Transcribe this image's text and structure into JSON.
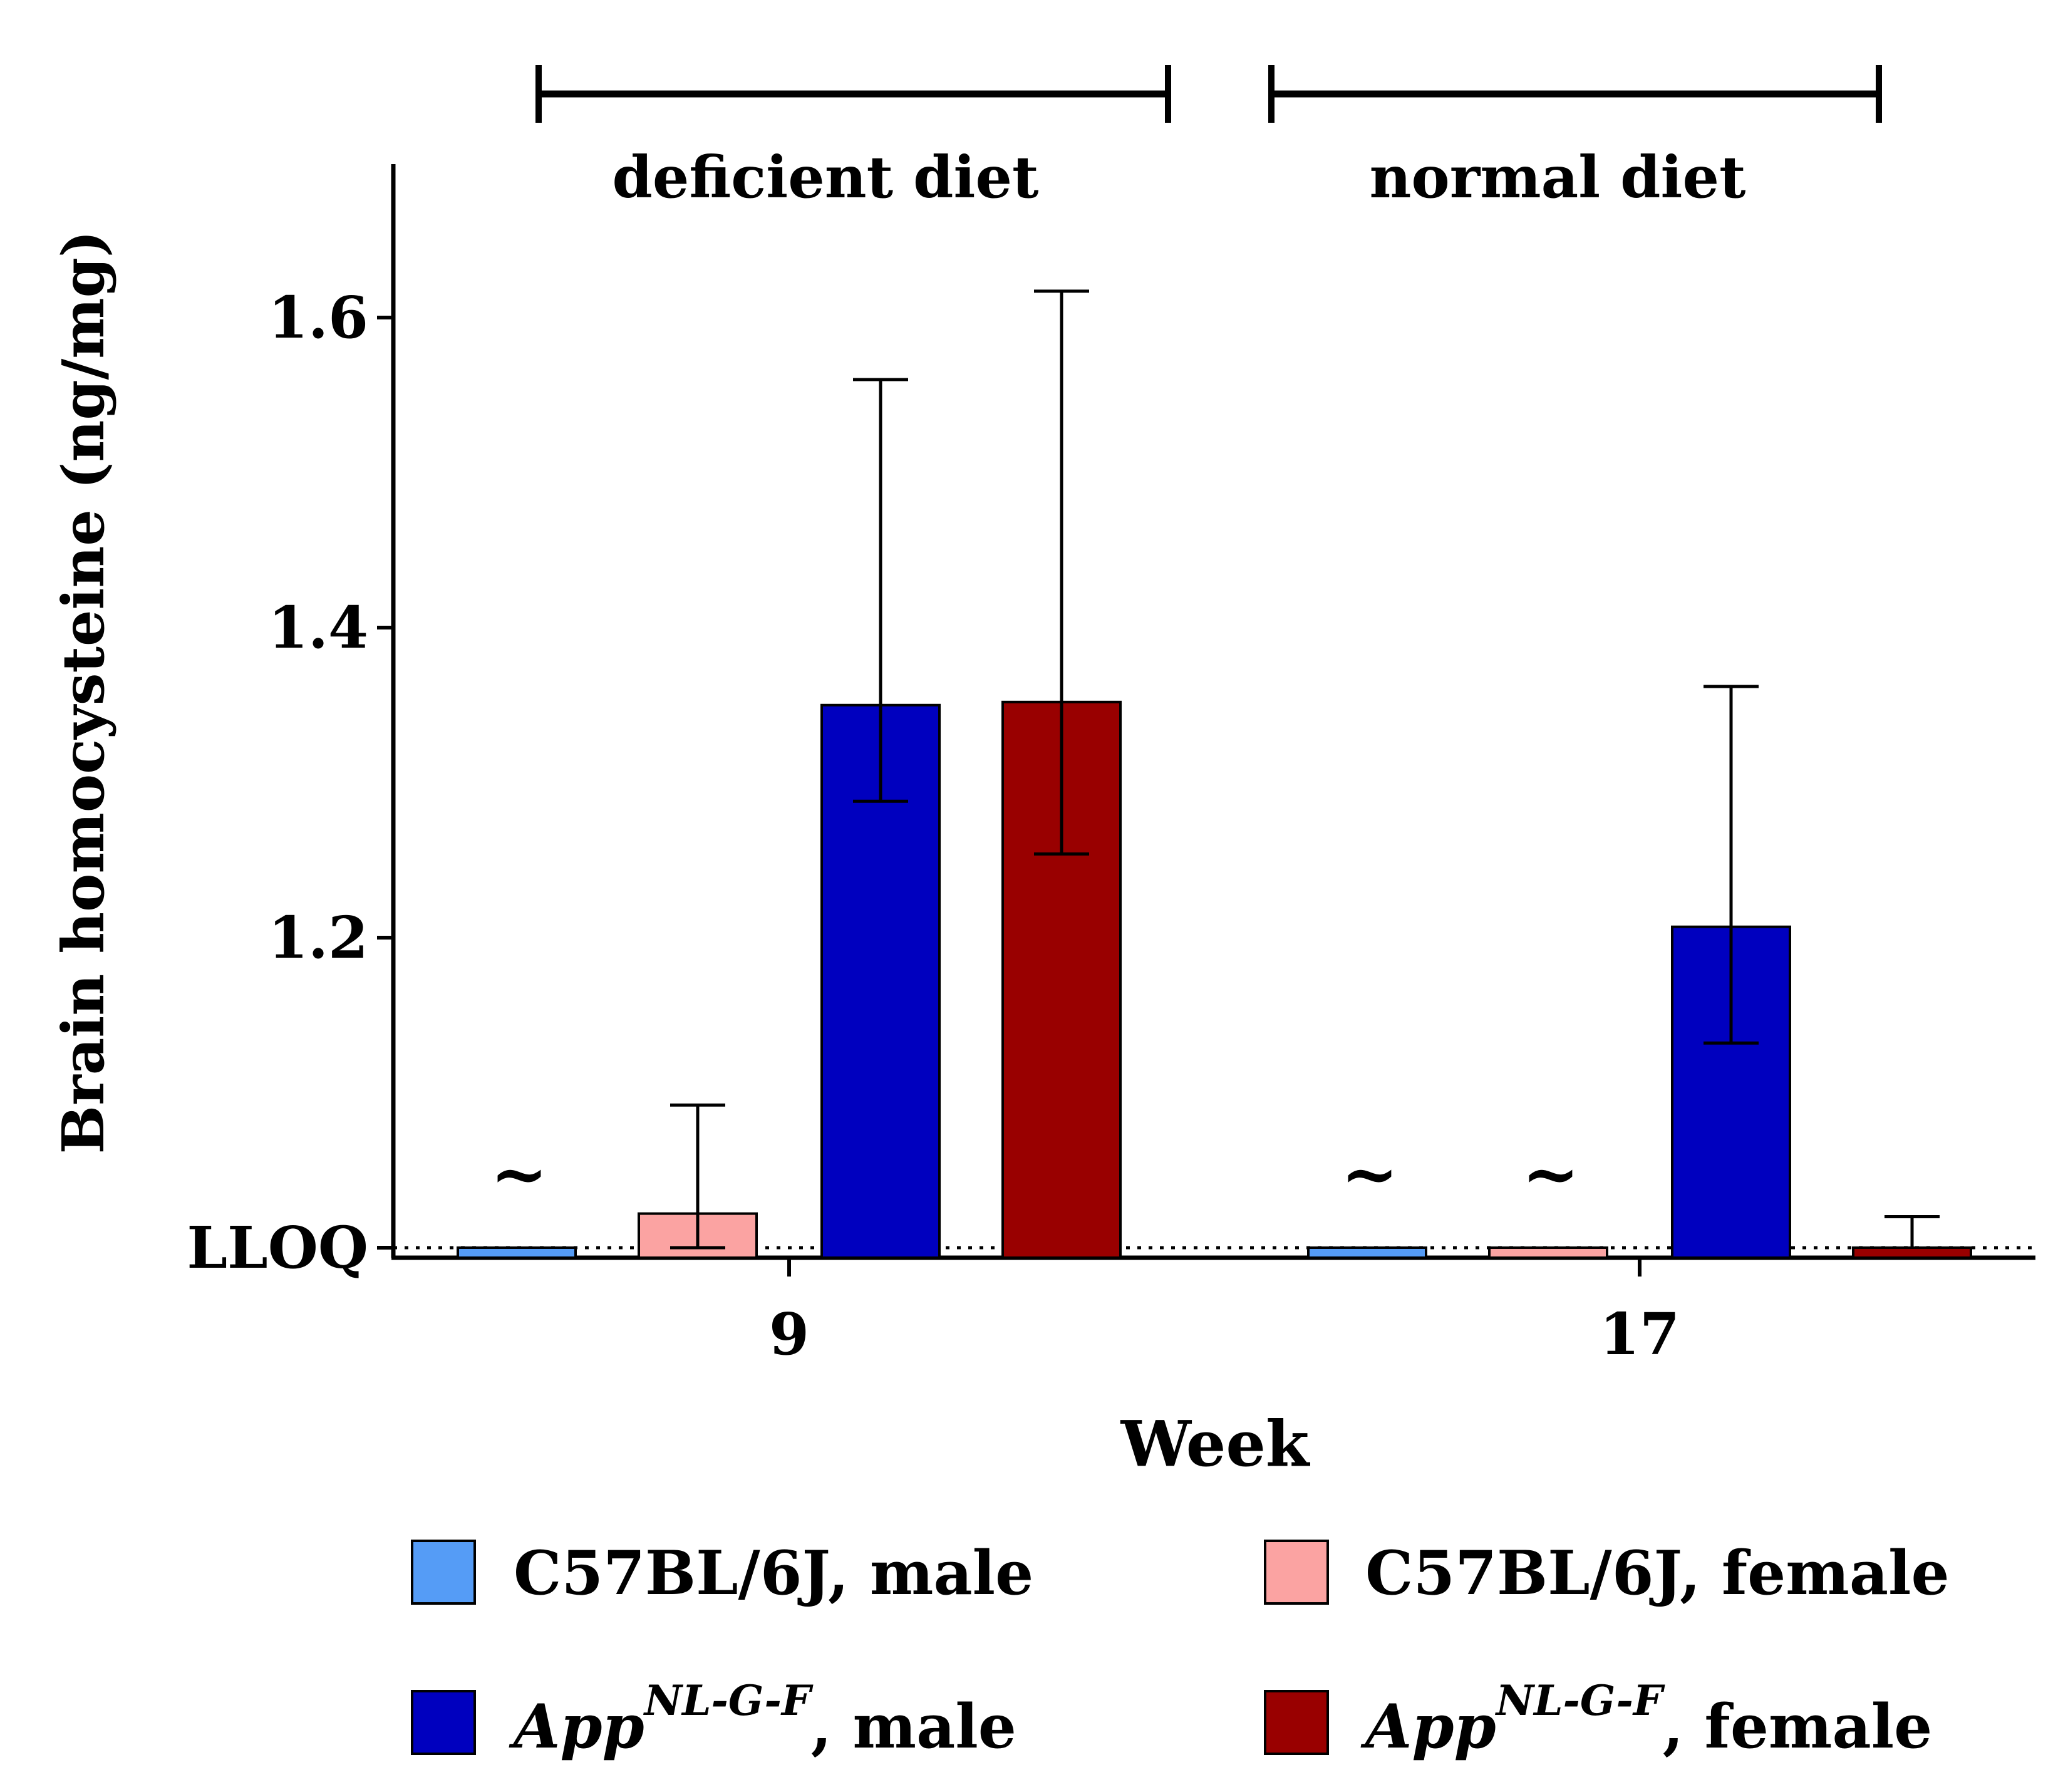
{
  "chart_data": {
    "type": "bar",
    "ylabel": "Brain homocysteine (ng/mg)",
    "xlabel": "Week",
    "ylim": [
      1.0,
      1.7
    ],
    "yticks": [
      {
        "value": 1.0,
        "label": "LLOQ"
      },
      {
        "value": 1.2,
        "label": "1.2"
      },
      {
        "value": 1.4,
        "label": "1.4"
      },
      {
        "value": 1.6,
        "label": "1.6"
      }
    ],
    "lloq_value": 1.0,
    "below_lloq_marker": "~",
    "categories": [
      "9",
      "17"
    ],
    "group_brackets": [
      {
        "label": "deficient diet",
        "category": "9"
      },
      {
        "label": "normal diet",
        "category": "17"
      }
    ],
    "colors": {
      "c57_male": "#559cf6",
      "c57_female": "#fba3a2",
      "app_male": "#0000bf",
      "app_female": "#990000"
    },
    "series": [
      {
        "key": "c57_male",
        "legend_main": "C57BL/6J",
        "legend_sup": "",
        "legend_suffix": ", male",
        "values": [
          1.0,
          1.0
        ],
        "err_low": [
          null,
          null
        ],
        "err_high": [
          null,
          null
        ],
        "below_lloq": [
          true,
          true
        ]
      },
      {
        "key": "c57_female",
        "legend_main": "C57BL/6J",
        "legend_sup": "",
        "legend_suffix": ", female",
        "values": [
          1.022,
          1.0
        ],
        "err_low": [
          1.0,
          null
        ],
        "err_high": [
          1.092,
          null
        ],
        "below_lloq": [
          false,
          true
        ]
      },
      {
        "key": "app_male",
        "legend_main": "App",
        "legend_sup": "NL-G-F",
        "legend_suffix": ", male",
        "values": [
          1.35,
          1.207
        ],
        "err_low": [
          1.288,
          1.132
        ],
        "err_high": [
          1.56,
          1.362
        ],
        "below_lloq": [
          false,
          false
        ]
      },
      {
        "key": "app_female",
        "legend_main": "App",
        "legend_sup": "NL-G-F",
        "legend_suffix": ", female",
        "values": [
          1.352,
          1.0
        ],
        "err_low": [
          1.254,
          null
        ],
        "err_high": [
          1.617,
          1.02
        ],
        "below_lloq": [
          false,
          false
        ]
      }
    ]
  }
}
